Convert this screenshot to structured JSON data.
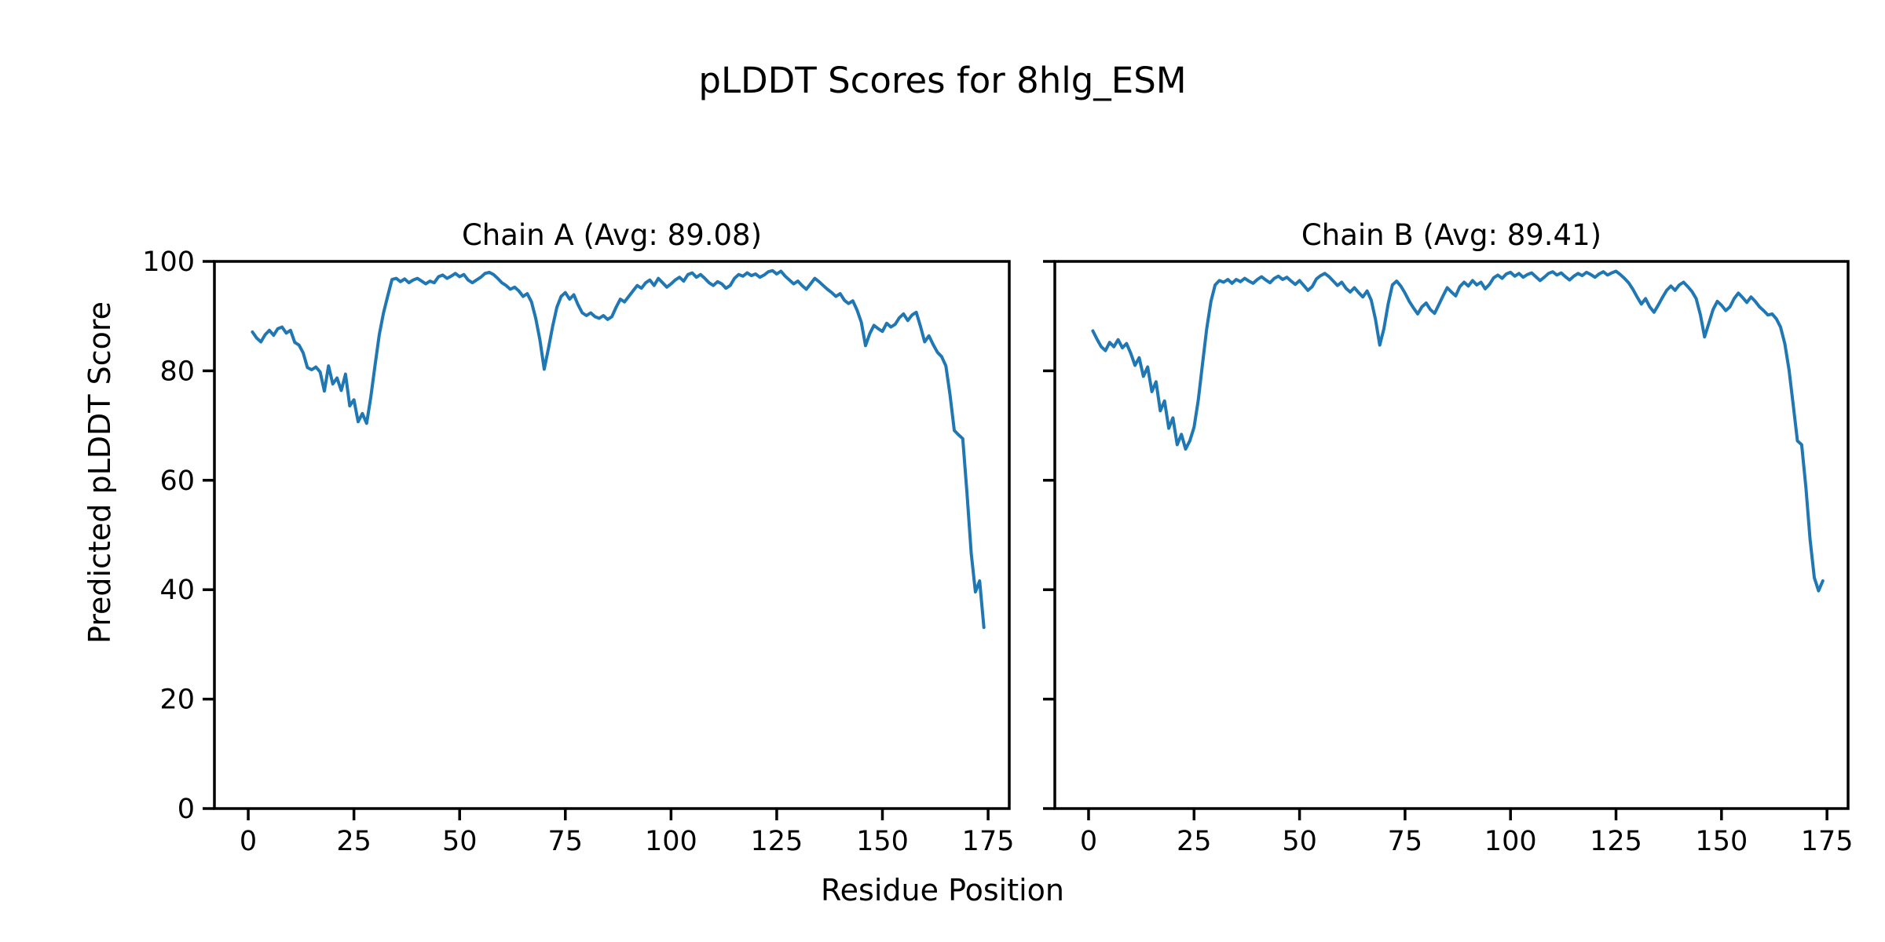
{
  "figure": {
    "suptitle": "pLDDT Scores for 8hlg_ESM",
    "xlabel": "Residue Position",
    "ylabel": "Predicted pLDDT Score",
    "background_color": "#ffffff",
    "text_color": "#000000"
  },
  "chart_data": [
    {
      "type": "line",
      "chain": "A",
      "title": "Chain A (Avg: 89.08)",
      "avg": 89.08,
      "line_color": "#1f77b4",
      "grid": false,
      "legend": "none",
      "x_start": 1,
      "xlim": [
        -8,
        180
      ],
      "ylim": [
        0,
        100
      ],
      "xticks": [
        0,
        25,
        50,
        75,
        100,
        125,
        150,
        175
      ],
      "yticks": [
        0,
        20,
        40,
        60,
        80,
        100
      ],
      "show_ytick_labels": true,
      "values": [
        87.1,
        86.0,
        85.3,
        86.6,
        87.4,
        86.5,
        87.7,
        88.0,
        86.9,
        87.4,
        85.2,
        84.7,
        83.3,
        80.6,
        80.2,
        80.7,
        79.8,
        76.3,
        80.9,
        77.6,
        78.7,
        76.4,
        79.4,
        73.6,
        74.7,
        70.7,
        72.2,
        70.4,
        75.3,
        81.1,
        86.6,
        90.6,
        93.7,
        96.7,
        96.9,
        96.3,
        96.8,
        96.1,
        96.6,
        96.9,
        96.4,
        95.9,
        96.4,
        96.1,
        97.2,
        97.5,
        96.9,
        97.3,
        97.8,
        97.2,
        97.6,
        96.6,
        96.1,
        96.6,
        97.1,
        97.8,
        98.0,
        97.6,
        96.9,
        96.1,
        95.6,
        94.9,
        95.3,
        94.6,
        93.6,
        94.1,
        92.6,
        89.6,
        85.6,
        80.3,
        84.1,
        88.1,
        91.6,
        93.6,
        94.3,
        93.1,
        93.9,
        92.1,
        90.6,
        90.1,
        90.6,
        89.9,
        89.6,
        90.1,
        89.4,
        89.9,
        91.6,
        93.1,
        92.6,
        93.6,
        94.6,
        95.6,
        95.1,
        96.1,
        96.6,
        95.6,
        96.9,
        96.1,
        95.3,
        95.9,
        96.6,
        97.1,
        96.4,
        97.6,
        97.9,
        97.1,
        97.6,
        96.9,
        96.1,
        95.6,
        96.3,
        95.9,
        95.1,
        95.6,
        96.9,
        97.6,
        97.3,
        97.9,
        97.4,
        97.7,
        97.1,
        97.5,
        98.1,
        98.3,
        97.7,
        98.2,
        97.3,
        96.6,
        95.9,
        96.4,
        95.6,
        94.9,
        95.9,
        96.9,
        96.3,
        95.6,
        94.9,
        94.3,
        93.6,
        94.1,
        92.9,
        92.3,
        92.8,
        91.1,
        88.9,
        84.6,
        86.8,
        88.3,
        87.7,
        87.2,
        88.7,
        88.0,
        88.5,
        89.7,
        90.4,
        89.2,
        90.2,
        90.7,
        88.1,
        85.3,
        86.4,
        84.8,
        83.4,
        82.6,
        80.9,
        75.6,
        69.1,
        68.3,
        67.6,
        57.6,
        46.6,
        39.6,
        41.6,
        33.1
      ]
    },
    {
      "type": "line",
      "chain": "B",
      "title": "Chain B (Avg: 89.41)",
      "avg": 89.41,
      "line_color": "#1f77b4",
      "grid": false,
      "legend": "none",
      "x_start": 1,
      "xlim": [
        -8,
        180
      ],
      "ylim": [
        0,
        100
      ],
      "xticks": [
        0,
        25,
        50,
        75,
        100,
        125,
        150,
        175
      ],
      "yticks": [
        0,
        20,
        40,
        60,
        80,
        100
      ],
      "show_ytick_labels": false,
      "values": [
        87.3,
        85.8,
        84.4,
        83.7,
        85.2,
        84.4,
        85.7,
        84.2,
        85.0,
        83.2,
        81.0,
        82.4,
        79.0,
        80.7,
        76.2,
        78.0,
        72.7,
        74.5,
        69.5,
        71.4,
        66.5,
        68.4,
        65.7,
        67.2,
        69.7,
        74.7,
        81.2,
        87.7,
        92.7,
        95.7,
        96.5,
        96.2,
        96.7,
        96.0,
        96.7,
        96.3,
        96.9,
        96.4,
        96.0,
        96.7,
        97.2,
        96.6,
        96.1,
        96.9,
        97.3,
        96.7,
        97.1,
        96.4,
        95.8,
        96.5,
        95.6,
        94.7,
        95.4,
        96.8,
        97.4,
        97.8,
        97.2,
        96.4,
        95.6,
        96.2,
        95.1,
        94.4,
        95.2,
        94.3,
        93.5,
        94.6,
        92.9,
        89.4,
        84.7,
        87.7,
        92.2,
        95.7,
        96.4,
        95.5,
        94.2,
        92.7,
        91.5,
        90.4,
        91.7,
        92.4,
        91.2,
        90.5,
        92.1,
        93.7,
        95.2,
        94.4,
        93.7,
        95.4,
        96.2,
        95.5,
        96.5,
        95.7,
        96.2,
        95.0,
        95.8,
        97.0,
        97.5,
        96.9,
        97.7,
        98.0,
        97.3,
        97.8,
        97.1,
        97.6,
        97.9,
        97.2,
        96.5,
        97.1,
        97.8,
        98.1,
        97.5,
        97.9,
        97.2,
        96.6,
        97.3,
        97.8,
        97.4,
        98.0,
        97.6,
        97.1,
        97.7,
        98.1,
        97.5,
        97.9,
        98.2,
        97.6,
        96.9,
        96.1,
        94.9,
        93.5,
        92.2,
        93.2,
        91.7,
        90.7,
        92.0,
        93.4,
        94.7,
        95.5,
        94.7,
        95.7,
        96.2,
        95.4,
        94.5,
        93.2,
        90.2,
        86.2,
        88.7,
        91.2,
        92.7,
        92.0,
        91.0,
        91.7,
        93.2,
        94.2,
        93.4,
        92.5,
        93.5,
        92.7,
        91.7,
        91.0,
        90.2,
        90.4,
        89.5,
        88.0,
        85.0,
        80.2,
        73.7,
        67.2,
        66.5,
        58.7,
        49.2,
        42.2,
        39.8,
        41.6
      ]
    }
  ]
}
